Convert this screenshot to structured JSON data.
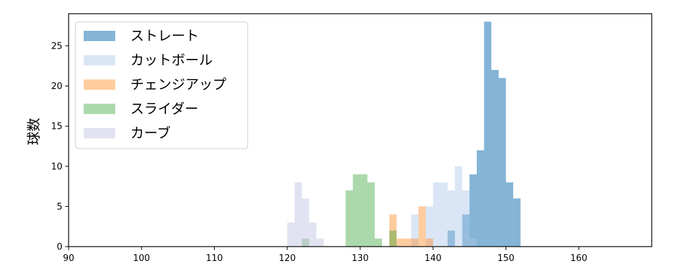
{
  "chart_data": {
    "type": "bar",
    "title": "",
    "xlabel": "",
    "ylabel": "球数",
    "xlim": [
      90,
      170
    ],
    "ylim": [
      0,
      29
    ],
    "x_ticks": [
      90,
      100,
      110,
      120,
      130,
      140,
      150,
      160
    ],
    "y_ticks": [
      0,
      5,
      10,
      15,
      20,
      25
    ],
    "grid": false,
    "legend_position": "upper-left",
    "series": [
      {
        "name": "ストレート",
        "color": "#1f77b4",
        "opacity": 0.55,
        "bins": [
          {
            "x0": 142,
            "x1": 143,
            "count": 2
          },
          {
            "x0": 144,
            "x1": 145,
            "count": 4
          },
          {
            "x0": 145,
            "x1": 146,
            "count": 9
          },
          {
            "x0": 146,
            "x1": 147,
            "count": 12
          },
          {
            "x0": 147,
            "x1": 148,
            "count": 28
          },
          {
            "x0": 148,
            "x1": 149,
            "count": 22
          },
          {
            "x0": 149,
            "x1": 150,
            "count": 21
          },
          {
            "x0": 150,
            "x1": 151,
            "count": 8
          },
          {
            "x0": 151,
            "x1": 152,
            "count": 6
          }
        ]
      },
      {
        "name": "カットボール",
        "color": "#aec7e8",
        "opacity": 0.45,
        "bins": [
          {
            "x0": 137,
            "x1": 138,
            "count": 4
          },
          {
            "x0": 139,
            "x1": 140,
            "count": 5
          },
          {
            "x0": 140,
            "x1": 141,
            "count": 8
          },
          {
            "x0": 141,
            "x1": 142,
            "count": 8
          },
          {
            "x0": 142,
            "x1": 143,
            "count": 7
          },
          {
            "x0": 143,
            "x1": 144,
            "count": 10
          },
          {
            "x0": 144,
            "x1": 145,
            "count": 7
          },
          {
            "x0": 145,
            "x1": 146,
            "count": 1
          }
        ]
      },
      {
        "name": "チェンジアップ",
        "color": "#ff7f0e",
        "opacity": 0.4,
        "bins": [
          {
            "x0": 134,
            "x1": 135,
            "count": 4
          },
          {
            "x0": 135,
            "x1": 136,
            "count": 1
          },
          {
            "x0": 136,
            "x1": 137,
            "count": 1
          },
          {
            "x0": 137,
            "x1": 138,
            "count": 1
          },
          {
            "x0": 138,
            "x1": 139,
            "count": 5
          },
          {
            "x0": 139,
            "x1": 140,
            "count": 1
          }
        ]
      },
      {
        "name": "スライダー",
        "color": "#2ca02c",
        "opacity": 0.4,
        "bins": [
          {
            "x0": 122,
            "x1": 123,
            "count": 1
          },
          {
            "x0": 128,
            "x1": 129,
            "count": 7
          },
          {
            "x0": 129,
            "x1": 130,
            "count": 9
          },
          {
            "x0": 130,
            "x1": 131,
            "count": 9
          },
          {
            "x0": 131,
            "x1": 132,
            "count": 8
          },
          {
            "x0": 132,
            "x1": 133,
            "count": 1
          },
          {
            "x0": 134,
            "x1": 135,
            "count": 2
          }
        ]
      },
      {
        "name": "カーブ",
        "color": "#c5c8e6",
        "opacity": 0.5,
        "bins": [
          {
            "x0": 120,
            "x1": 121,
            "count": 3
          },
          {
            "x0": 121,
            "x1": 122,
            "count": 8
          },
          {
            "x0": 122,
            "x1": 123,
            "count": 6
          },
          {
            "x0": 123,
            "x1": 124,
            "count": 3
          },
          {
            "x0": 124,
            "x1": 125,
            "count": 1
          }
        ]
      }
    ]
  }
}
